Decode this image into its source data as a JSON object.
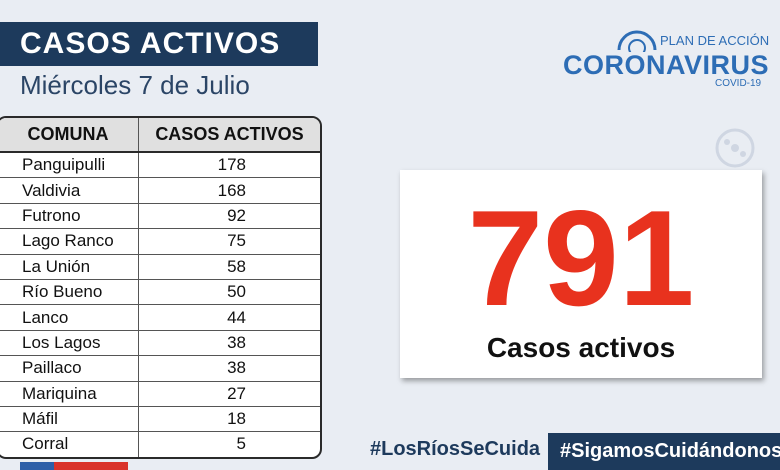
{
  "header": {
    "title": "CASOS ACTIVOS",
    "subtitle": "Miércoles 7 de Julio"
  },
  "logo": {
    "plan": "PLAN DE ACCIÓN",
    "name": "CORONAVIRUS",
    "sub": "COVID-19"
  },
  "table": {
    "columns": [
      "COMUNA",
      "CASOS ACTIVOS"
    ],
    "rows": [
      [
        "Panguipulli",
        178
      ],
      [
        "Valdivia",
        168
      ],
      [
        "Futrono",
        92
      ],
      [
        "Lago Ranco",
        75
      ],
      [
        "La Unión",
        58
      ],
      [
        "Río Bueno",
        50
      ],
      [
        "Lanco",
        44
      ],
      [
        "Los Lagos",
        38
      ],
      [
        "Paillaco",
        38
      ],
      [
        "Mariquina",
        27
      ],
      [
        "Máfil",
        18
      ],
      [
        "Corral",
        5
      ]
    ]
  },
  "summary": {
    "value": 791,
    "label": "Casos activos"
  },
  "hashtags": [
    "#LosRíosSeCuida",
    "#SigamosCuidándonos"
  ]
}
